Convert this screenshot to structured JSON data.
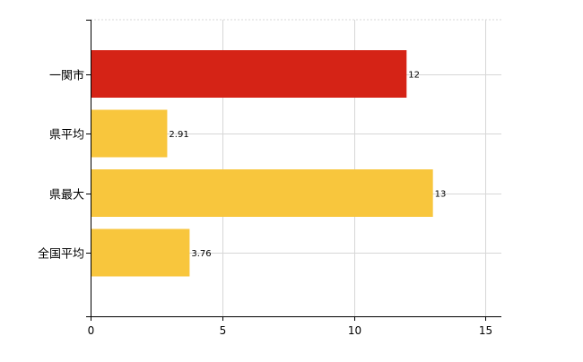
{
  "chart_data": {
    "type": "bar",
    "orientation": "horizontal",
    "categories": [
      "一関市",
      "県平均",
      "県最大",
      "全国平均"
    ],
    "values": [
      12,
      2.91,
      13,
      3.76
    ],
    "value_labels": [
      "12",
      "2.91",
      "13",
      "3.76"
    ],
    "bar_colors": [
      "#d52316",
      "#f8c63d",
      "#f8c63d",
      "#f8c63d"
    ],
    "xlim": [
      0,
      15.6
    ],
    "xticks": [
      0,
      5,
      10,
      15
    ],
    "xtick_labels": [
      "0",
      "5",
      "10",
      "15"
    ],
    "grid": true,
    "title": "",
    "xlabel": "",
    "ylabel": ""
  }
}
